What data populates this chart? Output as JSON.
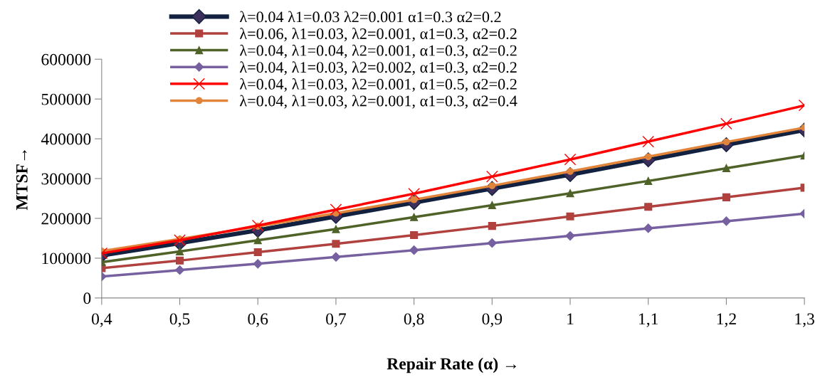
{
  "chart_data": {
    "type": "line",
    "xlabel": "Repair Rate (α) →",
    "ylabel": "MTSF→",
    "categories": [
      "0,4",
      "0,5",
      "0,6",
      "0,7",
      "0,8",
      "0,9",
      "1",
      "1,1",
      "1,2",
      "1,3"
    ],
    "ylim": [
      0,
      600000
    ],
    "yticks": [
      0,
      100000,
      200000,
      300000,
      400000,
      500000,
      600000
    ],
    "grid": false,
    "legend": "top",
    "series": [
      {
        "name": "λ=0.04 λ1=0.03 λ2=0.001 α1=0.3 α2=0.2",
        "color": "#12213f",
        "marker": "diamond",
        "values": [
          107000,
          138000,
          170000,
          205000,
          240000,
          275000,
          310000,
          347000,
          385000,
          422000
        ]
      },
      {
        "name": "λ=0.06, λ1=0.03, λ2=0.001, α1=0.3, α2=0.2",
        "color": "#b0413e",
        "marker": "square",
        "values": [
          75000,
          94000,
          115000,
          136000,
          158000,
          181000,
          205000,
          229000,
          253000,
          277000
        ]
      },
      {
        "name": "λ=0.04, λ1=0.04, λ2=0.001, α1=0.3, α2=0.2",
        "color": "#4f6228",
        "marker": "triangle",
        "values": [
          90000,
          117000,
          145000,
          173000,
          203000,
          233000,
          263000,
          294000,
          326000,
          358000
        ]
      },
      {
        "name": "λ=0.04, λ1=0.03, λ2=0.002, α1=0.3, α2=0.2",
        "color": "#7660a0",
        "marker": "diamond",
        "values": [
          54000,
          70000,
          86000,
          103000,
          120000,
          138000,
          156000,
          175000,
          193000,
          212000
        ]
      },
      {
        "name": "λ=0.04, λ1=0.03, λ2=0.001, α1=0.5, α2=0.2",
        "color": "#ff0000",
        "marker": "cross",
        "values": [
          112000,
          145000,
          182000,
          222000,
          262000,
          305000,
          348000,
          393000,
          438000,
          484000
        ]
      },
      {
        "name": "λ=0.04, λ1=0.03, λ2=0.001, α1=0.3, α2=0.4",
        "color": "#e0853b",
        "marker": "circle",
        "values": [
          118000,
          148000,
          180000,
          213000,
          247000,
          282000,
          318000,
          355000,
          392000,
          428000
        ]
      }
    ]
  }
}
